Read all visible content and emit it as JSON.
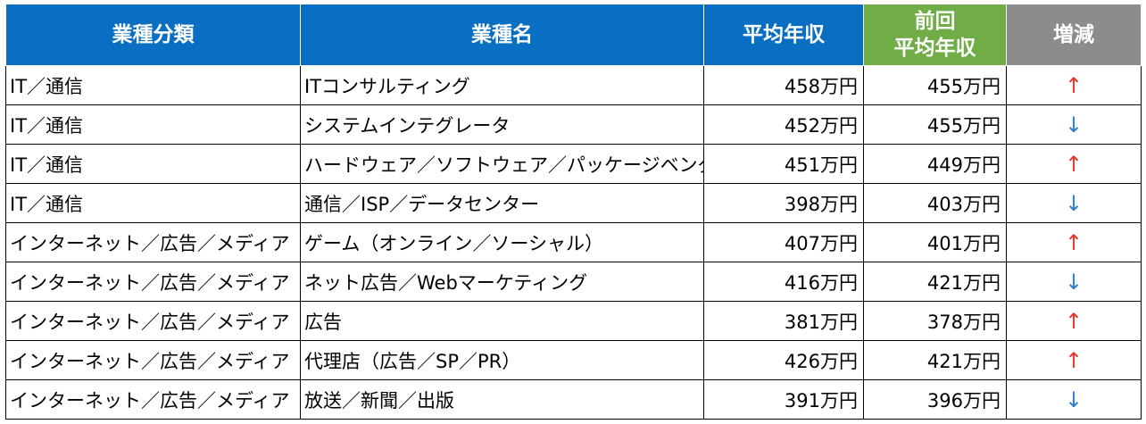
{
  "headers": {
    "category": "業種分類",
    "industry": "業種名",
    "avg_income": "平均年収",
    "prev_avg_income_line1": "前回",
    "prev_avg_income_line2": "平均年収",
    "change": "増減"
  },
  "arrow_glyphs": {
    "up": "↑",
    "down": "↓"
  },
  "colors": {
    "header_blue": "#0a6fc2",
    "header_green": "#70ad47",
    "header_gray": "#8c8c8c",
    "arrow_up": "#e8382e",
    "arrow_down": "#2e7fd0"
  },
  "rows": [
    {
      "category": "IT／通信",
      "industry": "ITコンサルティング",
      "avg": "458万円",
      "prev": "455万円",
      "change": "up"
    },
    {
      "category": "IT／通信",
      "industry": "システムインテグレータ",
      "avg": "452万円",
      "prev": "455万円",
      "change": "down"
    },
    {
      "category": "IT／通信",
      "industry": "ハードウェア／ソフトウェア／パッケージベンダ",
      "avg": "451万円",
      "prev": "449万円",
      "change": "up"
    },
    {
      "category": "IT／通信",
      "industry": "通信／ISP／データセンター",
      "avg": "398万円",
      "prev": "403万円",
      "change": "down"
    },
    {
      "category": "インターネット／広告／メディア",
      "industry": "ゲーム（オンライン／ソーシャル）",
      "avg": "407万円",
      "prev": "401万円",
      "change": "up"
    },
    {
      "category": "インターネット／広告／メディア",
      "industry": "ネット広告／Webマーケティング",
      "avg": "416万円",
      "prev": "421万円",
      "change": "down"
    },
    {
      "category": "インターネット／広告／メディア",
      "industry": "広告",
      "avg": "381万円",
      "prev": "378万円",
      "change": "up"
    },
    {
      "category": "インターネット／広告／メディア",
      "industry": "代理店（広告／SP／PR）",
      "avg": "426万円",
      "prev": "421万円",
      "change": "up"
    },
    {
      "category": "インターネット／広告／メディア",
      "industry": "放送／新聞／出版",
      "avg": "391万円",
      "prev": "396万円",
      "change": "down"
    }
  ]
}
